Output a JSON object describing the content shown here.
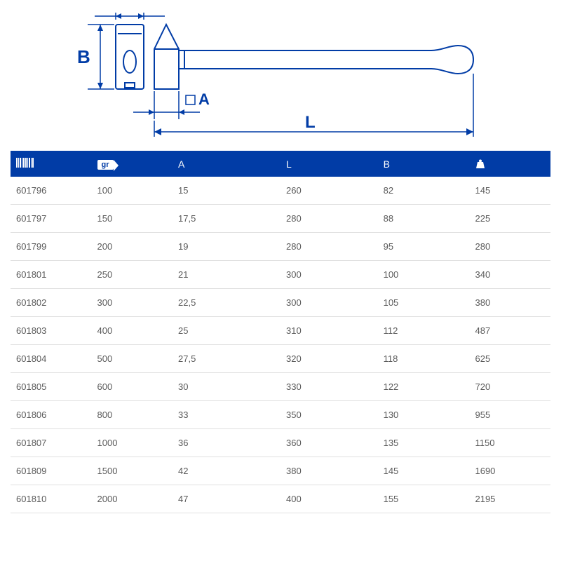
{
  "diagram": {
    "labels": {
      "A": "A",
      "B": "B",
      "L": "L"
    },
    "stroke_main": "#013ca6",
    "stroke_width_main": 2,
    "text_color": "#013ca6",
    "font_size_label": 22,
    "square_fill": "#ffffff"
  },
  "table": {
    "header_bg": "#013ca6",
    "header_text": "#ffffff",
    "row_text_color": "#5a5a5a",
    "border_color": "#e0e0e0",
    "columns": [
      {
        "key": "code",
        "label_type": "barcode"
      },
      {
        "key": "gr",
        "label_type": "gr",
        "label": "gr"
      },
      {
        "key": "A",
        "label_type": "text",
        "label": "A"
      },
      {
        "key": "L",
        "label_type": "text",
        "label": "L"
      },
      {
        "key": "B",
        "label_type": "text",
        "label": "B"
      },
      {
        "key": "wt",
        "label_type": "weight"
      }
    ],
    "rows": [
      {
        "code": "601796",
        "gr": "100",
        "A": "15",
        "L": "260",
        "B": "82",
        "wt": "145"
      },
      {
        "code": "601797",
        "gr": "150",
        "A": "17,5",
        "L": "280",
        "B": "88",
        "wt": "225"
      },
      {
        "code": "601799",
        "gr": "200",
        "A": "19",
        "L": "280",
        "B": "95",
        "wt": "280"
      },
      {
        "code": "601801",
        "gr": "250",
        "A": "21",
        "L": "300",
        "B": "100",
        "wt": "340"
      },
      {
        "code": "601802",
        "gr": "300",
        "A": "22,5",
        "L": "300",
        "B": "105",
        "wt": "380"
      },
      {
        "code": "601803",
        "gr": "400",
        "A": "25",
        "L": "310",
        "B": "112",
        "wt": "487"
      },
      {
        "code": "601804",
        "gr": "500",
        "A": "27,5",
        "L": "320",
        "B": "118",
        "wt": "625"
      },
      {
        "code": "601805",
        "gr": "600",
        "A": "30",
        "L": "330",
        "B": "122",
        "wt": "720"
      },
      {
        "code": "601806",
        "gr": "800",
        "A": "33",
        "L": "350",
        "B": "130",
        "wt": "955"
      },
      {
        "code": "601807",
        "gr": "1000",
        "A": "36",
        "L": "360",
        "B": "135",
        "wt": "1150"
      },
      {
        "code": "601809",
        "gr": "1500",
        "A": "42",
        "L": "380",
        "B": "145",
        "wt": "1690"
      },
      {
        "code": "601810",
        "gr": "2000",
        "A": "47",
        "L": "400",
        "B": "155",
        "wt": "2195"
      }
    ]
  }
}
